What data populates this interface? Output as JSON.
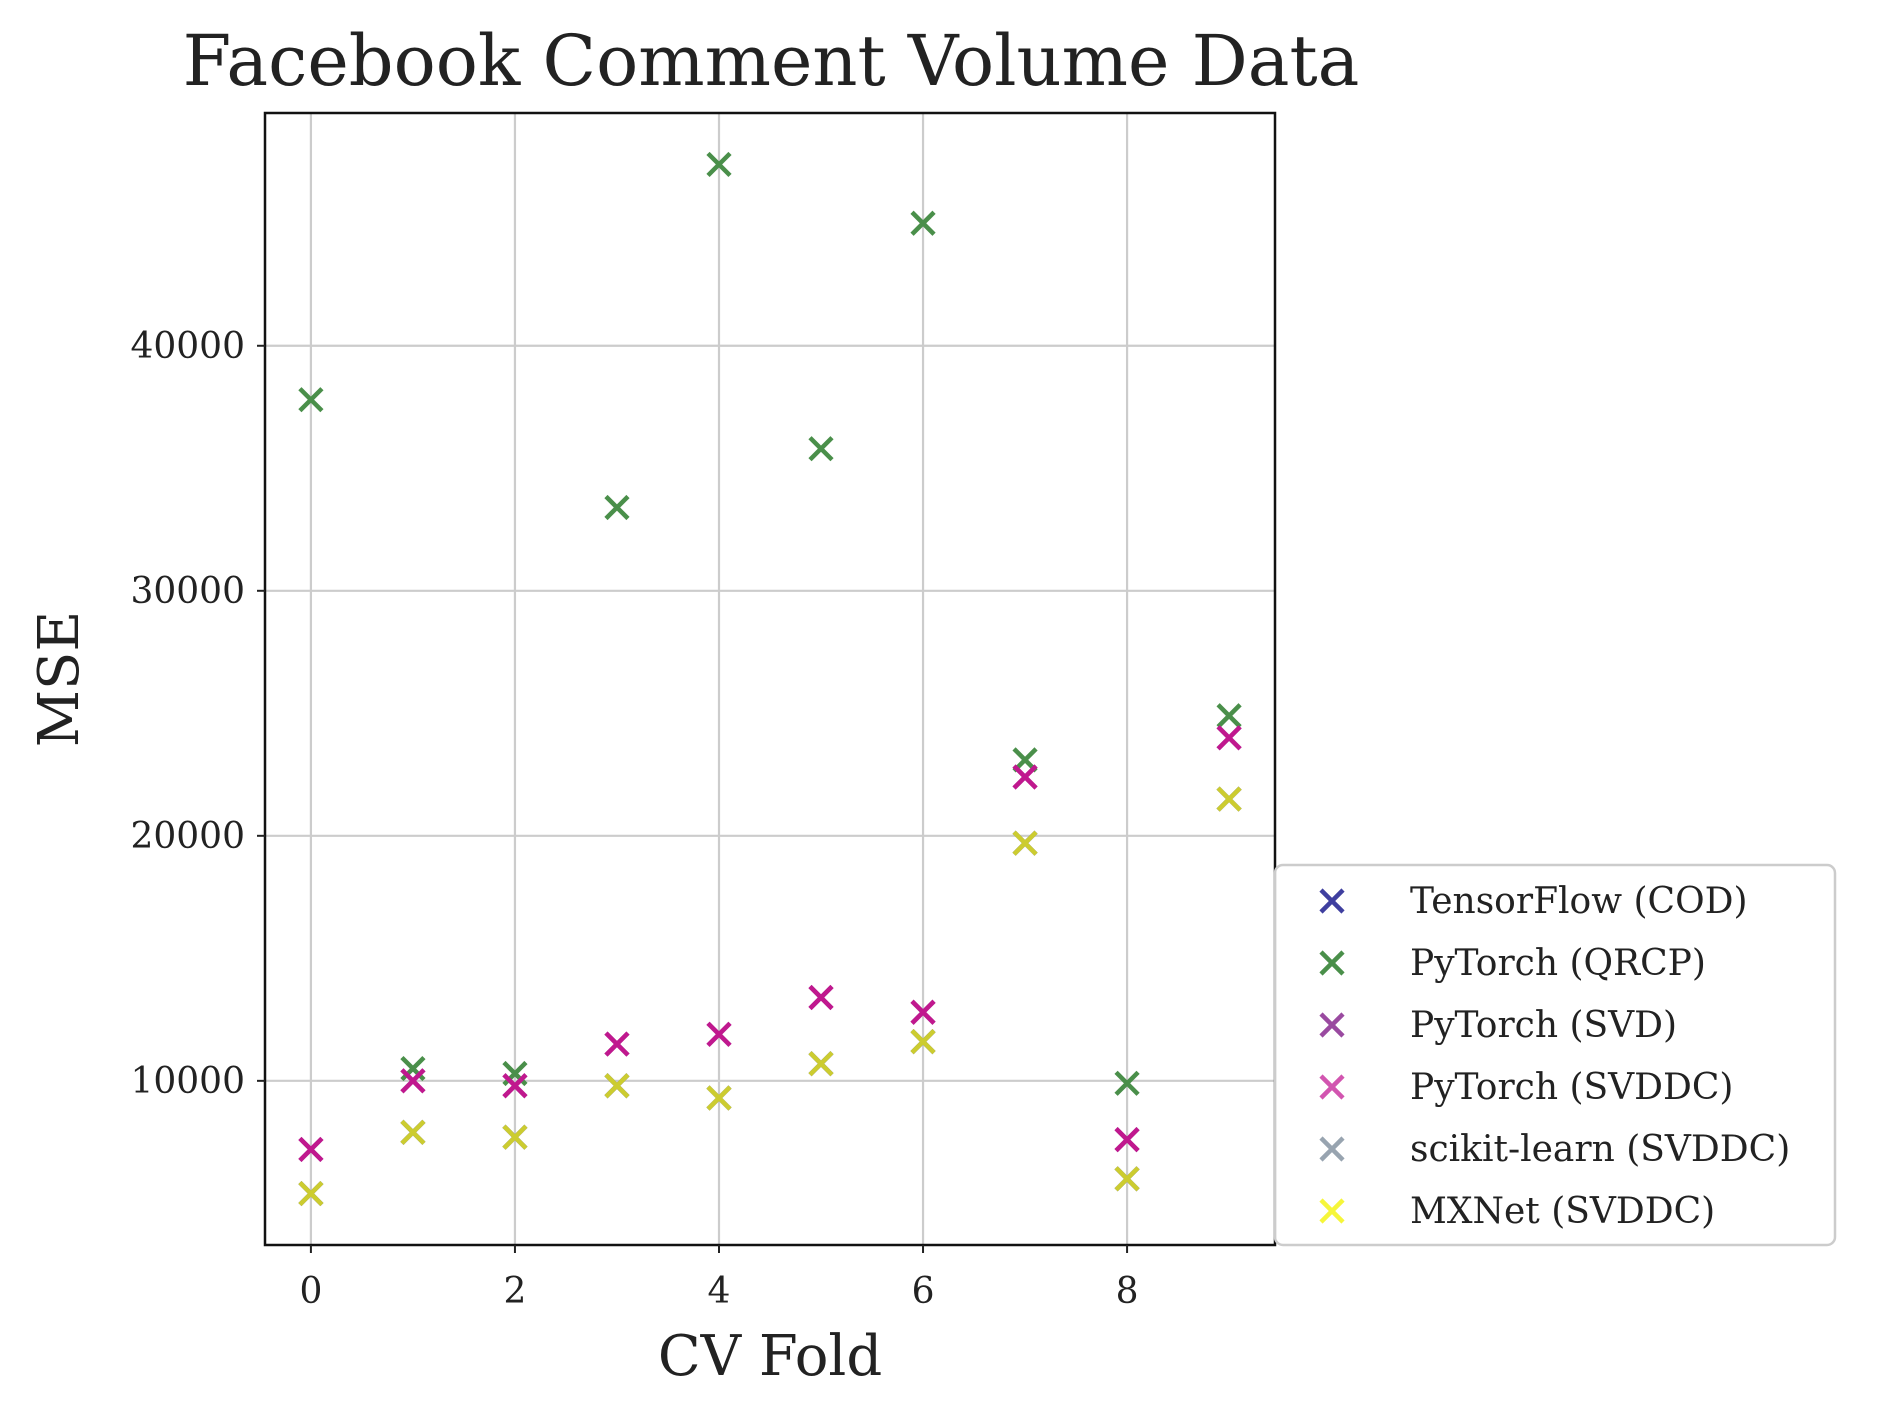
{
  "chart_data": {
    "type": "scatter",
    "title": "Facebook Comment Volume Data",
    "xlabel": "CV Fold",
    "ylabel": "MSE",
    "xlim": [
      -0.45,
      9.45
    ],
    "ylim": [
      3300,
      49500
    ],
    "xticks": [
      0,
      2,
      4,
      6,
      8
    ],
    "yticks": [
      10000,
      20000,
      30000,
      40000
    ],
    "grid": true,
    "legend_position": "outside-lower-right",
    "x": [
      0,
      1,
      2,
      3,
      4,
      5,
      6,
      7,
      8,
      9
    ],
    "series": [
      {
        "name": "TensorFlow (COD)",
        "color": "#3f3f9f",
        "values": [
          5400,
          7900,
          7700,
          9800,
          9300,
          10700,
          11600,
          19700,
          6000,
          21500
        ]
      },
      {
        "name": "PyTorch (QRCP)",
        "color": "#4a8f4a",
        "values": [
          37800,
          10500,
          10300,
          33400,
          47400,
          35800,
          45000,
          23100,
          9900,
          24900
        ]
      },
      {
        "name": "PyTorch (SVD)",
        "color": "#9a4aa0",
        "values": [
          7200,
          10000,
          9800,
          11500,
          11900,
          13400,
          12800,
          22400,
          7600,
          24000
        ]
      },
      {
        "name": "PyTorch (SVDDC)",
        "color": "#c0188e",
        "values": [
          7200,
          10000,
          9800,
          11500,
          11900,
          13400,
          12800,
          22400,
          7600,
          24000
        ]
      },
      {
        "name": "scikit-learn (SVDDC)",
        "color": "#98a4b0",
        "values": [
          5400,
          7900,
          7700,
          9800,
          9300,
          10700,
          11600,
          19700,
          6000,
          21500
        ]
      },
      {
        "name": "MXNet (SVDDC)",
        "color": "#cccc30",
        "values": [
          5400,
          7900,
          7700,
          9800,
          9300,
          10700,
          11600,
          19700,
          6000,
          21500
        ]
      }
    ],
    "legend_colors": [
      "#3f3f9f",
      "#4a8f4a",
      "#9a4aa0",
      "#d255b0",
      "#98a4b0",
      "#f6f63a"
    ]
  }
}
